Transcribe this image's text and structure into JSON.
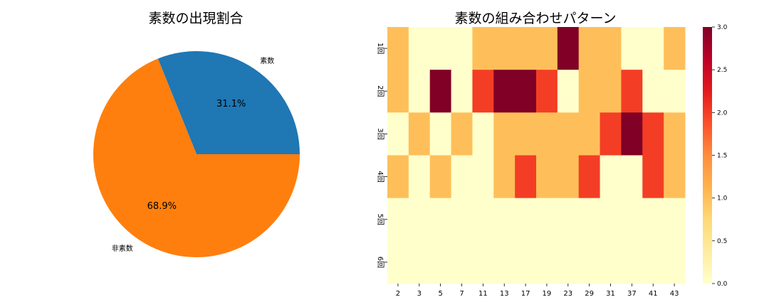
{
  "chart_data": [
    {
      "type": "pie",
      "title": "素数の出現割合",
      "slices": [
        {
          "label": "素数",
          "value": 31.1,
          "pct_label": "31.1%",
          "color": "#1f77b4"
        },
        {
          "label": "非素数",
          "value": 68.9,
          "pct_label": "68.9%",
          "color": "#ff7f0e"
        }
      ]
    },
    {
      "type": "heatmap",
      "title": "素数の組み合わせパターン",
      "x": [
        "2",
        "3",
        "5",
        "7",
        "11",
        "13",
        "17",
        "19",
        "23",
        "29",
        "31",
        "37",
        "41",
        "43"
      ],
      "y": [
        "1回",
        "2回",
        "3回",
        "4回",
        "5回",
        "6回"
      ],
      "values": [
        [
          1,
          0,
          0,
          0,
          1,
          1,
          1,
          1,
          3,
          1,
          1,
          0,
          0,
          1
        ],
        [
          1,
          0,
          3,
          0,
          2,
          3,
          3,
          2,
          0,
          1,
          1,
          2,
          0,
          0
        ],
        [
          0,
          1,
          0,
          1,
          0,
          1,
          1,
          1,
          1,
          1,
          2,
          3,
          2,
          1
        ],
        [
          1,
          0,
          1,
          0,
          0,
          1,
          2,
          1,
          1,
          2,
          0,
          0,
          2,
          1
        ],
        [
          0,
          0,
          0,
          0,
          0,
          0,
          0,
          0,
          0,
          0,
          0,
          0,
          0,
          0
        ],
        [
          0,
          0,
          0,
          0,
          0,
          0,
          0,
          0,
          0,
          0,
          0,
          0,
          0,
          0
        ]
      ],
      "colormap": "YlOrRd",
      "vmin": 0,
      "vmax": 3,
      "colorbar_ticks": [
        "0.0",
        "0.5",
        "1.0",
        "1.5",
        "2.0",
        "2.5",
        "3.0"
      ]
    }
  ]
}
